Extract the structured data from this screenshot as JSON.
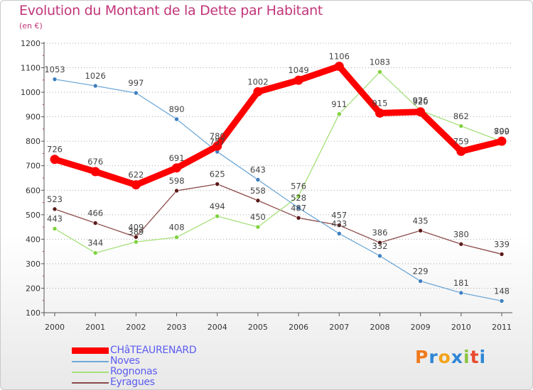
{
  "title": "Evolution du Montant de la Dette par Habitant",
  "subtitle": "(en €)",
  "logo_text": "Proxiti",
  "colors": {
    "title": "#c2357a",
    "legend_text": "#5c5cf0",
    "axis": "#555555",
    "grid": "#aaaaaa"
  },
  "chart_data": {
    "type": "line",
    "title": "Evolution du Montant de la Dette par Habitant",
    "subtitle": "(en €)",
    "x": [
      "2000",
      "2001",
      "2002",
      "2003",
      "2004",
      "2005",
      "2006",
      "2007",
      "2008",
      "2009",
      "2010",
      "2011"
    ],
    "ylim": [
      100,
      1200
    ],
    "yticks": [
      100,
      200,
      300,
      400,
      500,
      600,
      700,
      800,
      900,
      1000,
      1100,
      1200
    ],
    "grid": "horizontal-dotted",
    "legend_position": "bottom-left",
    "series": [
      {
        "name": "CHâTEAURENARD",
        "color": "#ff0000",
        "marker": "#ff0000",
        "values": [
          726,
          676,
          622,
          691,
          780,
          1002,
          1049,
          1106,
          915,
          920,
          759,
          800
        ]
      },
      {
        "name": "Noves",
        "color": "#6fa8d6",
        "marker": "#3d7ec0",
        "values": [
          1053,
          1026,
          997,
          890,
          757,
          643,
          528,
          423,
          332,
          229,
          181,
          148
        ]
      },
      {
        "name": "Rognonas",
        "color": "#a6e07a",
        "marker": "#7ed23c",
        "values": [
          443,
          344,
          389,
          408,
          494,
          450,
          576,
          911,
          1083,
          926,
          862,
          799
        ]
      },
      {
        "name": "Eyragues",
        "color": "#8b4a4a",
        "marker": "#5c1a1a",
        "values": [
          523,
          466,
          409,
          598,
          625,
          558,
          487,
          457,
          386,
          435,
          380,
          339
        ]
      }
    ]
  }
}
